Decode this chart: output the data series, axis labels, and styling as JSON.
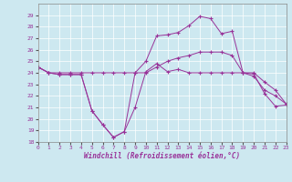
{
  "bg_color": "#cde8f0",
  "line_color": "#993399",
  "xlabel": "Windchill (Refroidissement éolien,°C)",
  "ylim": [
    18,
    30
  ],
  "xlim": [
    0,
    23
  ],
  "yticks": [
    18,
    19,
    20,
    21,
    22,
    23,
    24,
    25,
    26,
    27,
    28,
    29
  ],
  "xticks": [
    0,
    1,
    2,
    3,
    4,
    5,
    6,
    7,
    8,
    9,
    10,
    11,
    12,
    13,
    14,
    15,
    16,
    17,
    18,
    19,
    20,
    21,
    22,
    23
  ],
  "series": [
    [
      24.5,
      24.0,
      23.85,
      23.85,
      23.85,
      20.7,
      19.5,
      18.4,
      18.9,
      21.0,
      24.1,
      24.8,
      24.1,
      24.3,
      24.0,
      24.0,
      24.0,
      24.0,
      24.0,
      24.0,
      23.9,
      22.2,
      21.1,
      21.2
    ],
    [
      24.5,
      24.0,
      23.85,
      23.85,
      23.85,
      20.7,
      19.5,
      18.4,
      18.9,
      24.0,
      25.0,
      27.2,
      27.3,
      27.5,
      28.1,
      28.9,
      28.7,
      27.4,
      27.6,
      24.0,
      23.7,
      22.5,
      22.0,
      21.3
    ],
    [
      24.5,
      24.0,
      24.0,
      24.0,
      24.0,
      24.0,
      24.0,
      24.0,
      24.0,
      24.0,
      24.0,
      24.5,
      25.0,
      25.3,
      25.5,
      25.8,
      25.8,
      25.8,
      25.5,
      24.0,
      24.0,
      23.2,
      22.5,
      21.3
    ]
  ]
}
